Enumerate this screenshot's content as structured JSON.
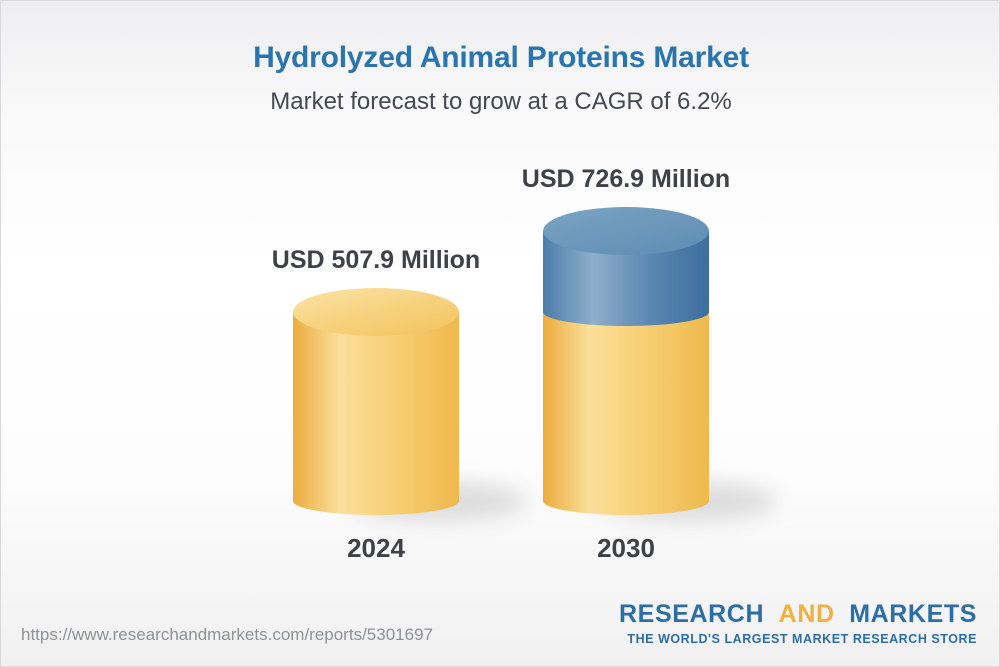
{
  "header": {
    "title": "Hydrolyzed Animal Proteins Market",
    "subtitle": "Market forecast to grow at a CAGR of 6.2%"
  },
  "chart_data": {
    "type": "bar",
    "variant": "3d-cylinder",
    "title": "Hydrolyzed Animal Proteins Market",
    "subtitle": "Market forecast to grow at a CAGR of 6.2%",
    "categories": [
      "2024",
      "2030"
    ],
    "values": [
      507.9,
      726.9
    ],
    "value_labels": [
      "USD 507.9 Million",
      "USD 726.9 Million"
    ],
    "unit": "USD Million",
    "cagr_pct": 6.2,
    "ylim": [
      0,
      726.9
    ],
    "grid": false,
    "legend": false,
    "colors": {
      "base_segment": "#F5C75F",
      "growth_segment": "#4E7FAB",
      "label_text": "#3E4247",
      "title_blue": "#2A75B0"
    },
    "notes": "2030 bar shows the 2024 base value in gold with the incremental growth to 2030 stacked on top in blue"
  },
  "footer": {
    "url": "https://www.researchandmarkets.com/reports/5301697",
    "logo": {
      "word1": "RESEARCH",
      "word2": "AND",
      "word3": "MARKETS",
      "tagline": "THE WORLD'S LARGEST MARKET RESEARCH STORE",
      "blue": "#2D6EA6",
      "gold": "#F0B23E"
    }
  }
}
